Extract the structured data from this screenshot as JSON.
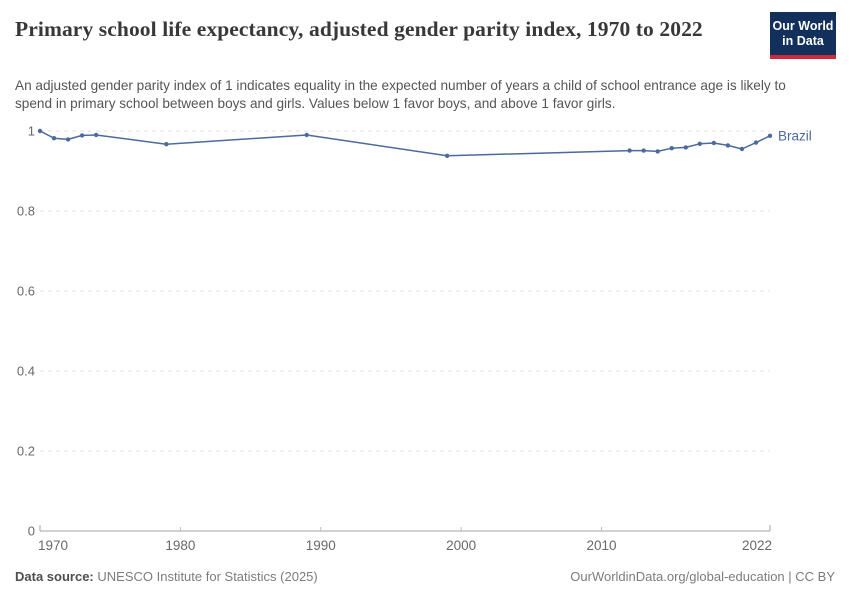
{
  "header": {
    "title": "Primary school life expectancy, adjusted gender parity index, 1970 to 2022",
    "subtitle": "An adjusted gender parity index of 1 indicates equality in the expected number of years a child of school entrance age is likely to spend in primary school between boys and girls. Values below 1 favor boys, and above 1 favor girls.",
    "logo": {
      "line1": "Our World",
      "line2": "in Data",
      "bg_color": "#12305b",
      "accent_color": "#d0293b"
    }
  },
  "chart_data": {
    "type": "line",
    "title": "Primary school life expectancy, adjusted gender parity index, 1970 to 2022",
    "xlabel": "",
    "ylabel": "",
    "xlim": [
      1970,
      2022
    ],
    "ylim": [
      0,
      1
    ],
    "grid": "horizontal-dashed",
    "legend_position": "end-of-line-label",
    "x": [
      1970,
      1971,
      1972,
      1973,
      1974,
      1979,
      1989,
      1999,
      2012,
      2013,
      2014,
      2015,
      2016,
      2017,
      2018,
      2019,
      2020,
      2021,
      2022
    ],
    "series": [
      {
        "name": "Brazil",
        "color": "#4c6a9c",
        "values": [
          1.0,
          0.982,
          0.979,
          0.989,
          0.99,
          0.967,
          0.99,
          0.938,
          0.951,
          0.951,
          0.949,
          0.957,
          0.959,
          0.968,
          0.97,
          0.964,
          0.955,
          0.971,
          0.988
        ]
      }
    ],
    "x_ticks": {
      "values": [
        1970,
        1980,
        1990,
        2000,
        2010,
        2022
      ],
      "labels": [
        "1970",
        "1980",
        "1990",
        "2000",
        "2010",
        "2022"
      ]
    },
    "y_ticks": {
      "values": [
        0,
        0.2,
        0.4,
        0.6,
        0.8,
        1
      ],
      "labels": [
        "0",
        "0.2",
        "0.4",
        "0.6",
        "0.8",
        "1"
      ]
    },
    "axis_color": "#a3a3a3",
    "grid_color": "#e2e2e2",
    "tick_label_color": "#696969"
  },
  "footer": {
    "source_label": "Data source:",
    "source_text": "UNESCO Institute for Statistics (2025)",
    "credit": "OurWorldinData.org/global-education | CC BY"
  }
}
